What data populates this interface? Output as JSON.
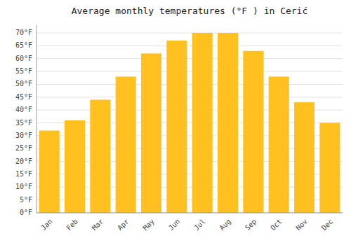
{
  "chart_data": {
    "type": "bar",
    "title": "Average monthly temperatures (°F ) in Cerić",
    "categories": [
      "Jan",
      "Feb",
      "Mar",
      "Apr",
      "May",
      "Jun",
      "Jul",
      "Aug",
      "Sep",
      "Oct",
      "Nov",
      "Dec"
    ],
    "values": [
      32,
      36,
      44,
      53,
      62,
      67,
      70,
      70,
      63,
      53,
      43,
      35
    ],
    "color": "#FFC020",
    "ylim": [
      0,
      73
    ],
    "yticks": [
      {
        "value": 0,
        "label": "0°F"
      },
      {
        "value": 5,
        "label": "5°F"
      },
      {
        "value": 10,
        "label": "10°F"
      },
      {
        "value": 15,
        "label": "15°F"
      },
      {
        "value": 20,
        "label": "20°F"
      },
      {
        "value": 25,
        "label": "25°F"
      },
      {
        "value": 30,
        "label": "30°F"
      },
      {
        "value": 35,
        "label": "35°F"
      },
      {
        "value": 40,
        "label": "40°F"
      },
      {
        "value": 45,
        "label": "45°F"
      },
      {
        "value": 50,
        "label": "50°F"
      },
      {
        "value": 55,
        "label": "55°F"
      },
      {
        "value": 60,
        "label": "60°F"
      },
      {
        "value": 65,
        "label": "65°F"
      },
      {
        "value": 70,
        "label": "70°F"
      }
    ],
    "grid": true
  }
}
